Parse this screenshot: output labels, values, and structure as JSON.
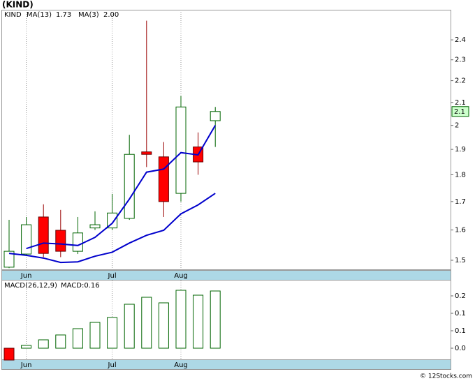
{
  "title": "(KIND)",
  "footer": "© 12Stocks.com",
  "chart_data": [
    {
      "type": "candlestick",
      "symbol": "KIND",
      "symbol_color": "#006400",
      "categories": [
        null,
        "Jun",
        null,
        null,
        null,
        null,
        "Jul",
        null,
        null,
        null,
        "Aug",
        null,
        null
      ],
      "open": [
        1.478,
        1.52,
        1.645,
        1.599,
        1.529,
        1.607,
        1.607,
        1.64,
        1.89,
        1.87,
        1.73,
        1.91,
        2.02
      ],
      "high": [
        1.635,
        1.645,
        1.69,
        1.67,
        1.645,
        1.665,
        1.728,
        1.96,
        2.5,
        1.93,
        2.13,
        1.97,
        2.08
      ],
      "low": [
        1.475,
        1.515,
        1.51,
        1.51,
        1.52,
        1.6,
        1.6,
        1.635,
        1.83,
        1.645,
        1.7,
        1.8,
        1.91
      ],
      "close": [
        1.529,
        1.618,
        1.522,
        1.529,
        1.59,
        1.618,
        1.659,
        1.88,
        1.88,
        1.7,
        2.08,
        1.85,
        2.06
      ],
      "up_color": "#006400",
      "down_color": "#ff0000",
      "lines": [
        {
          "name": "MA(13)",
          "last_label": "1.73",
          "color": "#0000cc",
          "values": [
            1.522,
            1.516,
            1.507,
            1.493,
            1.495,
            1.513,
            1.526,
            1.556,
            1.582,
            1.599,
            1.656,
            1.688,
            1.73
          ]
        },
        {
          "name": "MA(3)",
          "last_label": "2.00",
          "color": "#0000cc",
          "values": [
            null,
            1.538,
            1.556,
            1.553,
            1.548,
            1.575,
            1.623,
            1.709,
            1.81,
            1.822,
            1.887,
            1.878,
            2.0
          ]
        }
      ],
      "last_label": "2.1",
      "log_scale": true,
      "grid": "x",
      "ylim": [
        1.469,
        2.559
      ],
      "yticks": [
        1.5,
        1.6,
        1.7,
        1.8,
        1.9,
        2.0,
        2.1,
        2.2,
        2.3,
        2.4
      ]
    },
    {
      "type": "bar",
      "label": "MACD(26,12,9)",
      "value_label": "MACD:0.16",
      "categories": [
        null,
        "Jun",
        null,
        null,
        null,
        null,
        "Jul",
        null,
        null,
        null,
        "Aug",
        null,
        null
      ],
      "values": [
        -0.034,
        0.008,
        0.024,
        0.038,
        0.056,
        0.074,
        0.088,
        0.126,
        0.146,
        0.13,
        0.166,
        0.152,
        0.164
      ],
      "up_color": "#006400",
      "down_color": "#ff0000",
      "label_color": "#0000cc",
      "grid": "x",
      "ylim": [
        -0.034,
        0.194
      ],
      "yticks": [
        {
          "value": 0,
          "label": "0.0"
        },
        {
          "value": 0.05,
          "label": "0.1"
        },
        0.1,
        {
          "value": 0.15,
          "label": "0.2"
        }
      ]
    }
  ]
}
